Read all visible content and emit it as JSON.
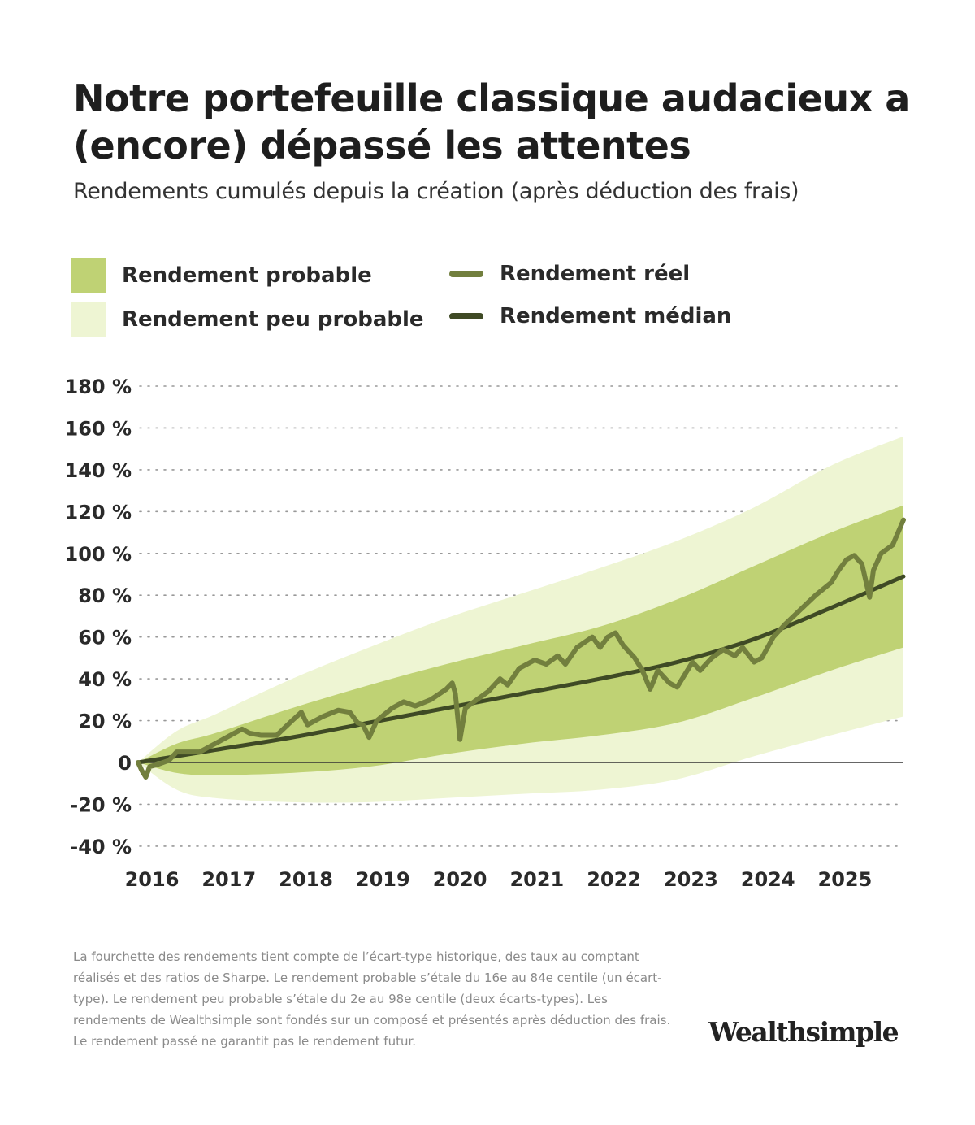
{
  "title": "Notre portefeuille classique audacieux a (encore) dépassé les attentes",
  "subtitle": "Rendements cumulés depuis la création (après déduction des frais)",
  "colors": {
    "unlikely": "#eef5d3",
    "probable": "#bfd274",
    "actual": "#727f3e",
    "median": "#3f4a25",
    "zero": "#333333",
    "grid": "#999999"
  },
  "legend": [
    {
      "label": "Rendement probable",
      "type": "area",
      "color": "#bfd274"
    },
    {
      "label": "Rendement peu probable",
      "type": "area",
      "color": "#eef5d3"
    },
    {
      "label": "Rendement réel",
      "type": "line",
      "color": "#727f3e"
    },
    {
      "label": "Rendement médian",
      "type": "line",
      "color": "#3f4a25"
    }
  ],
  "chart_data": {
    "type": "area",
    "title": "Notre portefeuille classique audacieux a (encore) dépassé les attentes",
    "xlabel": "",
    "ylabel": "",
    "xlim": [
      2016,
      2025.94
    ],
    "ylim": [
      -40,
      180
    ],
    "yticks": [
      -40,
      -20,
      0,
      20,
      40,
      60,
      80,
      100,
      120,
      140,
      160,
      180
    ],
    "ytick_labels": [
      "-40 %",
      "-20 %",
      "0",
      "20 %",
      "40 %",
      "60 %",
      "80 %",
      "100 %",
      "120 %",
      "140 %",
      "160 %",
      "180 %"
    ],
    "xticks": [
      2016,
      2017,
      2018,
      2019,
      2020,
      2021,
      2022,
      2023,
      2024,
      2025
    ],
    "xtick_labels": [
      "2016",
      "2017",
      "2018",
      "2019",
      "2020",
      "2021",
      "2022",
      "2023",
      "2024",
      "2025"
    ],
    "grid": true,
    "band_x": [
      2016,
      2016.5,
      2017,
      2018,
      2019,
      2020,
      2021,
      2022,
      2023,
      2024,
      2025,
      2025.94
    ],
    "unlikely_upper": [
      0,
      15,
      23,
      40,
      55,
      69,
      81,
      93,
      106,
      122,
      142,
      156
    ],
    "probable_upper": [
      0,
      9,
      14,
      26,
      37,
      47,
      56,
      65,
      78,
      94,
      110,
      123
    ],
    "probable_lower": [
      0,
      -5,
      -6,
      -5,
      -2,
      4,
      9,
      13,
      19,
      31,
      44,
      55
    ],
    "unlikely_lower": [
      0,
      -13,
      -17,
      -19,
      -19,
      -17,
      -15,
      -13,
      -8,
      3,
      13,
      22
    ],
    "median": {
      "x": [
        2016,
        2017,
        2018,
        2019,
        2020,
        2021,
        2022,
        2023,
        2024,
        2025,
        2025.94
      ],
      "y": [
        0,
        6,
        12,
        19,
        26,
        33,
        40,
        48,
        59,
        74,
        89
      ]
    },
    "actual": {
      "x": [
        2016.0,
        2016.05,
        2016.1,
        2016.15,
        2016.25,
        2016.4,
        2016.5,
        2016.6,
        2016.8,
        2017.0,
        2017.2,
        2017.35,
        2017.45,
        2017.6,
        2017.8,
        2018.0,
        2018.12,
        2018.2,
        2018.4,
        2018.6,
        2018.75,
        2018.85,
        2018.92,
        2019.0,
        2019.1,
        2019.3,
        2019.45,
        2019.6,
        2019.8,
        2020.0,
        2020.08,
        2020.12,
        2020.18,
        2020.25,
        2020.4,
        2020.55,
        2020.7,
        2020.8,
        2020.95,
        2021.15,
        2021.3,
        2021.45,
        2021.55,
        2021.7,
        2021.9,
        2022.0,
        2022.1,
        2022.2,
        2022.3,
        2022.45,
        2022.55,
        2022.65,
        2022.75,
        2022.9,
        2023.0,
        2023.1,
        2023.2,
        2023.3,
        2023.45,
        2023.6,
        2023.75,
        2023.85,
        2024.0,
        2024.1,
        2024.25,
        2024.4,
        2024.6,
        2024.8,
        2025.0,
        2025.1,
        2025.2,
        2025.3,
        2025.4,
        2025.5,
        2025.55,
        2025.65,
        2025.8,
        2025.94
      ],
      "y": [
        0,
        -4,
        -7,
        -2,
        -1,
        1,
        5,
        5,
        5,
        9,
        13,
        16,
        14,
        13,
        13,
        20,
        24,
        18,
        22,
        25,
        24,
        19,
        18,
        12,
        20,
        26,
        29,
        27,
        30,
        35,
        38,
        33,
        11,
        26,
        30,
        34,
        40,
        37,
        45,
        49,
        47,
        51,
        47,
        55,
        60,
        55,
        60,
        62,
        56,
        50,
        44,
        35,
        44,
        38,
        36,
        42,
        48,
        44,
        50,
        54,
        51,
        55,
        48,
        50,
        60,
        66,
        73,
        80,
        86,
        92,
        97,
        99,
        95,
        79,
        92,
        100,
        104,
        116
      ]
    }
  },
  "footnote": "La fourchette des rendements tient compte de l’écart-type historique, des taux au comptant réalisés et des ratios de Sharpe. Le rendement probable s’étale du 16e au 84e centile (un écart-type). Le rendement peu probable s’étale du 2e au 98e centile (deux écarts-types). Les rendements de Wealthsimple sont fondés sur un composé et présentés après déduction des frais. Le rendement passé ne garantit pas le rendement futur.",
  "brand": "Wealthsimple"
}
